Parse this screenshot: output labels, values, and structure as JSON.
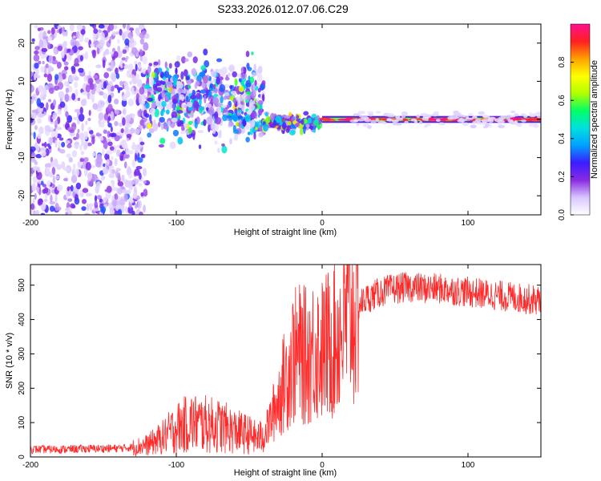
{
  "title": "S233.2026.012.07.06.C29",
  "chart_data": [
    {
      "type": "heatmap",
      "title": "S233.2026.012.07.06.C29",
      "xlabel": "Height of straight line (km)",
      "ylabel": "Frequency (Hz)",
      "xlim": [
        -200,
        150
      ],
      "ylim": [
        -25,
        25
      ],
      "xticks": [
        -200,
        -100,
        0,
        100
      ],
      "xtick_labels": [
        "-200",
        "-100",
        "0",
        "100"
      ],
      "yticks": [
        -20,
        -10,
        0,
        10,
        20
      ],
      "ytick_labels": [
        "-20",
        "-10",
        "0",
        "10",
        "20"
      ],
      "colorbar": {
        "label": "Normalized spectral amplitude",
        "range": [
          0,
          1
        ],
        "ticks": [
          0.0,
          0.2,
          0.4,
          0.6,
          0.8
        ],
        "tick_labels": [
          "0.0",
          "0.2",
          "0.4",
          "0.6",
          "0.8"
        ],
        "colormap": [
          "#ffffff",
          "#d9c7ff",
          "#8a2be2",
          "#3b1cff",
          "#00a0ff",
          "#00e0e0",
          "#00ff66",
          "#b0ff00",
          "#ffff00",
          "#ffa000",
          "#ff2020",
          "#ff1090"
        ]
      },
      "regions": [
        {
          "x": [
            -200,
            -120
          ],
          "freq_spread_hz": 25,
          "amplitude": [
            0.05,
            0.15
          ],
          "description_color": "violet"
        },
        {
          "x": [
            -120,
            -40
          ],
          "freq_center_hz": 5,
          "freq_spread_hz": 15,
          "amplitude": [
            0.05,
            0.3
          ]
        },
        {
          "x": [
            -40,
            0
          ],
          "freq_center_hz": -1,
          "freq_spread_hz": 3,
          "amplitude": [
            0.1,
            0.6
          ]
        },
        {
          "x": [
            0,
            150
          ],
          "freq_center_hz": 0,
          "freq_spread_hz": 0.8,
          "amplitude": [
            0.8,
            1.0
          ]
        }
      ],
      "grid": false
    },
    {
      "type": "line",
      "xlabel": "Height of straight line (km)",
      "ylabel": "SNR (10 * v/v)",
      "xlim": [
        -200,
        150
      ],
      "ylim": [
        0,
        560
      ],
      "xticks": [
        -200,
        -100,
        0,
        100
      ],
      "xtick_labels": [
        "-200",
        "-100",
        "0",
        "100"
      ],
      "yticks": [
        0,
        100,
        200,
        300,
        400,
        500
      ],
      "ytick_labels": [
        "0",
        "100",
        "200",
        "300",
        "400",
        "500"
      ],
      "series": [
        {
          "color": "#ff2a2a",
          "x": [
            -200,
            -180,
            -160,
            -140,
            -130,
            -120,
            -110,
            -100,
            -90,
            -80,
            -70,
            -60,
            -50,
            -45,
            -40,
            -35,
            -30,
            -25,
            -20,
            -15,
            -10,
            -5,
            0,
            5,
            10,
            15,
            20,
            25,
            30,
            40,
            50,
            60,
            70,
            80,
            90,
            100,
            110,
            120,
            130,
            140,
            150
          ],
          "y": [
            22,
            22,
            24,
            25,
            28,
            35,
            55,
            85,
            100,
            95,
            90,
            75,
            65,
            55,
            60,
            110,
            170,
            230,
            290,
            300,
            290,
            320,
            310,
            330,
            350,
            390,
            420,
            440,
            460,
            480,
            490,
            495,
            490,
            490,
            485,
            480,
            475,
            470,
            465,
            460,
            455
          ]
        }
      ],
      "grid": false
    }
  ]
}
